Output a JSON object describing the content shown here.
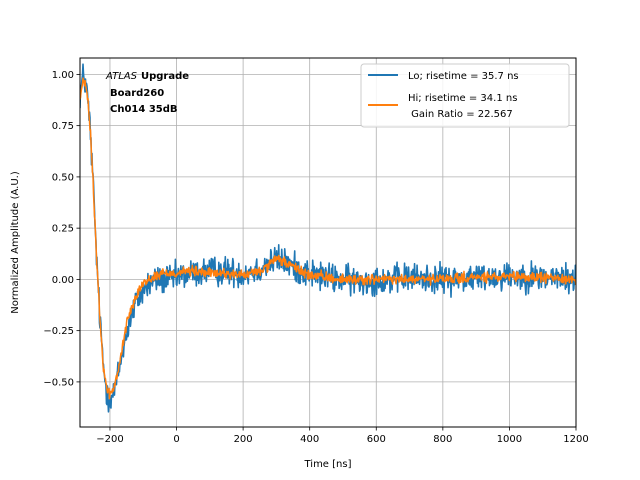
{
  "chart_data": {
    "type": "line",
    "xlabel": "Time [ns]",
    "ylabel": "Normalized Amplitude (A.U.)",
    "xlim": [
      -290,
      1200
    ],
    "ylim": [
      -0.72,
      1.08
    ],
    "xticks": [
      -200,
      0,
      200,
      400,
      600,
      800,
      1000,
      1200
    ],
    "yticks": [
      -0.5,
      -0.25,
      0.0,
      0.25,
      0.5,
      0.75,
      1.0
    ],
    "xtick_labels": [
      "−200",
      "0",
      "200",
      "400",
      "600",
      "800",
      "1000",
      "1200"
    ],
    "ytick_labels": [
      "−0.50",
      "−0.25",
      "0.00",
      "0.25",
      "0.50",
      "0.75",
      "1.00"
    ],
    "grid": true,
    "legend_position": "top-right",
    "annotation": {
      "line1_italic": "ATLAS",
      "line1_bold": "Upgrade",
      "line2": "Board260",
      "line3": "Ch014 35dB"
    },
    "series": [
      {
        "name": "Lo; risetime = 35.7 ns",
        "color": "#1f77b4",
        "noise": 0.035,
        "x": [
          -290,
          -280,
          -270,
          -260,
          -250,
          -240,
          -230,
          -220,
          -210,
          -200,
          -190,
          -180,
          -170,
          -160,
          -150,
          -140,
          -130,
          -120,
          -110,
          -100,
          -80,
          -60,
          -40,
          -20,
          0,
          20,
          50,
          100,
          150,
          200,
          250,
          280,
          300,
          320,
          350,
          400,
          450,
          500,
          550,
          600,
          650,
          700,
          800,
          900,
          1000,
          1100,
          1200
        ],
        "values": [
          0.9,
          1.0,
          0.93,
          0.75,
          0.45,
          0.1,
          -0.2,
          -0.42,
          -0.55,
          -0.58,
          -0.56,
          -0.5,
          -0.42,
          -0.33,
          -0.26,
          -0.2,
          -0.15,
          -0.11,
          -0.08,
          -0.05,
          -0.02,
          0.0,
          0.0,
          0.0,
          0.01,
          0.02,
          0.03,
          0.04,
          0.04,
          0.03,
          0.05,
          0.08,
          0.1,
          0.09,
          0.06,
          0.03,
          0.01,
          0.0,
          -0.01,
          0.0,
          0.0,
          0.01,
          0.0,
          0.01,
          0.02,
          0.01,
          0.0
        ]
      },
      {
        "name": "Hi; risetime = 34.1 ns",
        "name_line2": " Gain Ratio = 22.567",
        "color": "#ff7f0e",
        "noise": 0.012,
        "x": [
          -290,
          -280,
          -270,
          -260,
          -250,
          -240,
          -230,
          -220,
          -210,
          -200,
          -190,
          -180,
          -170,
          -160,
          -150,
          -140,
          -130,
          -120,
          -110,
          -100,
          -80,
          -60,
          -40,
          -20,
          0,
          20,
          50,
          100,
          150,
          200,
          250,
          280,
          300,
          320,
          350,
          400,
          450,
          500,
          550,
          600,
          650,
          700,
          800,
          900,
          1000,
          1100,
          1200
        ],
        "values": [
          0.88,
          0.97,
          0.93,
          0.75,
          0.45,
          0.1,
          -0.2,
          -0.42,
          -0.53,
          -0.56,
          -0.54,
          -0.48,
          -0.4,
          -0.3,
          -0.22,
          -0.16,
          -0.11,
          -0.07,
          -0.04,
          -0.02,
          0.0,
          0.02,
          0.03,
          0.03,
          0.03,
          0.04,
          0.04,
          0.03,
          0.03,
          0.02,
          0.04,
          0.07,
          0.1,
          0.09,
          0.06,
          0.02,
          0.01,
          0.0,
          0.0,
          0.0,
          0.0,
          0.0,
          0.0,
          0.01,
          0.01,
          0.01,
          0.0
        ]
      }
    ]
  }
}
